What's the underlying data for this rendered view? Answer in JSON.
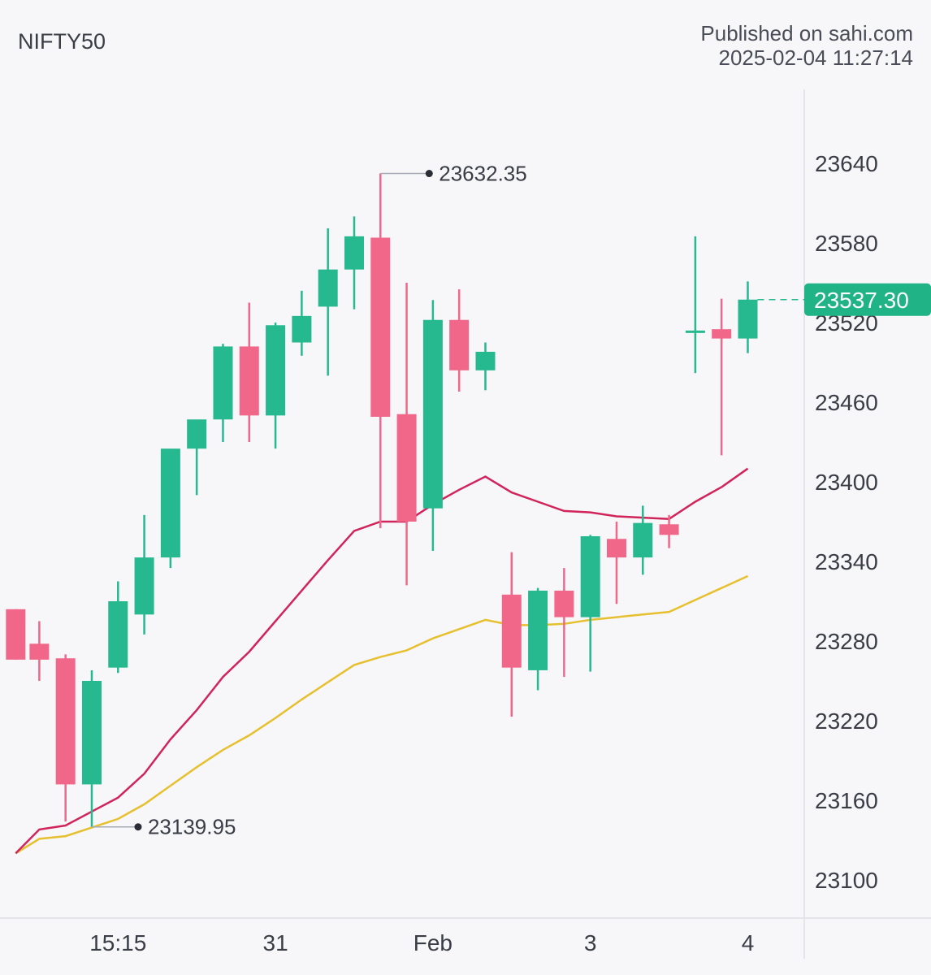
{
  "header": {
    "symbol": "NIFTY50",
    "published_line1": "Published on sahi.com",
    "published_line2": "2025-02-04 11:27:14"
  },
  "chart_data": {
    "type": "candlestick",
    "y_ticks": [
      23100,
      23160,
      23220,
      23280,
      23340,
      23400,
      23460,
      23520,
      23580,
      23640
    ],
    "y_tick_labels": [
      "23100",
      "23160",
      "23220",
      "23280",
      "23340",
      "23400",
      "23460",
      "23520",
      "23580",
      "23640"
    ],
    "ylim": [
      23090,
      23690
    ],
    "x_labels": [
      {
        "label": "15:15",
        "index": 3.6
      },
      {
        "label": "31",
        "index": 9.6
      },
      {
        "label": "Feb",
        "index": 15.6
      },
      {
        "label": "3",
        "index": 21.6
      },
      {
        "label": "4",
        "index": 27.6
      }
    ],
    "candles": [
      {
        "index": -0.3,
        "o": 23304,
        "h": 23304,
        "l": 23266,
        "c": 23266
      },
      {
        "index": 0.6,
        "o": 23278,
        "h": 23295,
        "l": 23250,
        "c": 23266
      },
      {
        "index": 1.6,
        "o": 23267,
        "h": 23270,
        "l": 23144,
        "c": 23172
      },
      {
        "index": 2.6,
        "o": 23172,
        "h": 23258,
        "l": 23140,
        "c": 23250
      },
      {
        "index": 3.6,
        "o": 23260,
        "h": 23325,
        "l": 23256,
        "c": 23310
      },
      {
        "index": 4.6,
        "o": 23300,
        "h": 23375,
        "l": 23285,
        "c": 23343
      },
      {
        "index": 5.6,
        "o": 23343,
        "h": 23420,
        "l": 23335,
        "c": 23425
      },
      {
        "index": 6.6,
        "o": 23425,
        "h": 23445,
        "l": 23390,
        "c": 23447
      },
      {
        "index": 7.6,
        "o": 23447,
        "h": 23504,
        "l": 23430,
        "c": 23502
      },
      {
        "index": 8.6,
        "o": 23502,
        "h": 23535,
        "l": 23430,
        "c": 23450
      },
      {
        "index": 9.6,
        "o": 23450,
        "h": 23520,
        "l": 23425,
        "c": 23518
      },
      {
        "index": 10.6,
        "o": 23505,
        "h": 23544,
        "l": 23495,
        "c": 23525
      },
      {
        "index": 11.6,
        "o": 23532,
        "h": 23591,
        "l": 23480,
        "c": 23560
      },
      {
        "index": 12.6,
        "o": 23560,
        "h": 23600,
        "l": 23530,
        "c": 23585
      },
      {
        "index": 13.6,
        "o": 23584,
        "h": 23632.35,
        "l": 23365,
        "c": 23449
      },
      {
        "index": 14.6,
        "o": 23451,
        "h": 23550,
        "l": 23322,
        "c": 23370
      },
      {
        "index": 15.6,
        "o": 23380,
        "h": 23537,
        "l": 23348,
        "c": 23522
      },
      {
        "index": 16.6,
        "o": 23522,
        "h": 23545,
        "l": 23468,
        "c": 23484
      },
      {
        "index": 17.6,
        "o": 23484,
        "h": 23505,
        "l": 23469,
        "c": 23498
      },
      {
        "index": 18.6,
        "o": 23315,
        "h": 23347,
        "l": 23223,
        "c": 23260
      },
      {
        "index": 19.6,
        "o": 23258,
        "h": 23320,
        "l": 23243,
        "c": 23318
      },
      {
        "index": 20.6,
        "o": 23318,
        "h": 23335,
        "l": 23253,
        "c": 23298
      },
      {
        "index": 21.6,
        "o": 23298,
        "h": 23360,
        "l": 23257,
        "c": 23359
      },
      {
        "index": 22.6,
        "o": 23357,
        "h": 23370,
        "l": 23308,
        "c": 23343
      },
      {
        "index": 23.6,
        "o": 23343,
        "h": 23382,
        "l": 23330,
        "c": 23369
      },
      {
        "index": 24.6,
        "o": 23368,
        "h": 23375,
        "l": 23350,
        "c": 23360
      },
      {
        "index": 25.6,
        "o": 23513,
        "h": 23585,
        "l": 23482,
        "c": 23514
      },
      {
        "index": 26.6,
        "o": 23515,
        "h": 23538,
        "l": 23420,
        "c": 23508
      },
      {
        "index": 27.6,
        "o": 23508,
        "h": 23551,
        "l": 23497,
        "c": 23537.3
      }
    ],
    "ma_short": [
      [
        -0.3,
        23120
      ],
      [
        0.6,
        23138
      ],
      [
        1.6,
        23141
      ],
      [
        3.6,
        23162
      ],
      [
        4.6,
        23180
      ],
      [
        5.6,
        23206
      ],
      [
        6.6,
        23228
      ],
      [
        7.6,
        23253
      ],
      [
        8.6,
        23272
      ],
      [
        9.6,
        23295
      ],
      [
        10.6,
        23318
      ],
      [
        11.6,
        23341
      ],
      [
        12.6,
        23363
      ],
      [
        13.6,
        23370
      ],
      [
        14.6,
        23370
      ],
      [
        15.6,
        23383
      ],
      [
        16.6,
        23394
      ],
      [
        17.6,
        23404
      ],
      [
        18.6,
        23392
      ],
      [
        19.6,
        23385
      ],
      [
        20.6,
        23378
      ],
      [
        21.6,
        23377
      ],
      [
        22.6,
        23374
      ],
      [
        23.6,
        23373
      ],
      [
        24.6,
        23372
      ],
      [
        25.6,
        23385
      ],
      [
        26.6,
        23396
      ],
      [
        27.6,
        23410
      ]
    ],
    "ma_long": [
      [
        -0.3,
        23120
      ],
      [
        0.6,
        23131
      ],
      [
        1.6,
        23133
      ],
      [
        3.6,
        23146
      ],
      [
        4.6,
        23157
      ],
      [
        5.6,
        23171
      ],
      [
        6.6,
        23185
      ],
      [
        7.6,
        23198
      ],
      [
        8.6,
        23209
      ],
      [
        9.6,
        23222
      ],
      [
        10.6,
        23236
      ],
      [
        11.6,
        23249
      ],
      [
        12.6,
        23262
      ],
      [
        13.6,
        23268
      ],
      [
        14.6,
        23273
      ],
      [
        15.6,
        23282
      ],
      [
        16.6,
        23289
      ],
      [
        17.6,
        23296
      ],
      [
        18.6,
        23292
      ],
      [
        19.6,
        23292
      ],
      [
        20.6,
        23293
      ],
      [
        21.6,
        23296
      ],
      [
        22.6,
        23298
      ],
      [
        23.6,
        23300
      ],
      [
        24.6,
        23302
      ],
      [
        25.6,
        23311
      ],
      [
        26.6,
        23320
      ],
      [
        27.6,
        23329
      ]
    ],
    "high_marker": {
      "value": 23632.35,
      "label": "23632.35",
      "index": 13.6
    },
    "low_marker": {
      "value": 23139.95,
      "label": "23139.95",
      "index": 2.6
    },
    "last_price": {
      "value": 23537.3,
      "label": "23537.30"
    },
    "colors": {
      "up": "#26b88f",
      "down": "#f0678a",
      "ma_short": "#d0245a",
      "ma_long": "#e6c02e",
      "axis_text": "#3a3d46",
      "grid": "#e4e5ea",
      "last_price_bg": "#1fb386"
    }
  }
}
